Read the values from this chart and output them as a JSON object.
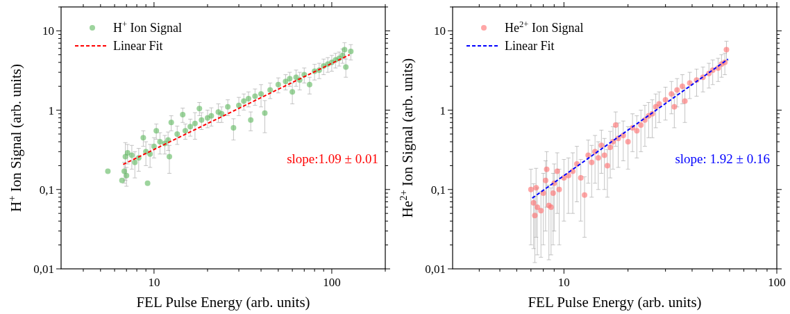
{
  "chart_data": [
    {
      "type": "scatter",
      "xlabel": "FEL Pulse Energy (arb. units)",
      "ylabel": "H$^{+}$ Ion Signal (arb. units)",
      "log": "xy",
      "legend": "top left",
      "xlim": [
        3,
        200
      ],
      "ylim": [
        0.01,
        20
      ],
      "xticks": [
        {
          "value": 4,
          "label": null
        },
        {
          "value": 5,
          "label": null
        },
        {
          "value": 6,
          "label": null
        },
        {
          "value": 7,
          "label": null
        },
        {
          "value": 8,
          "label": null
        },
        {
          "value": 9,
          "label": null
        },
        {
          "value": 10,
          "label": "10"
        },
        {
          "value": 20,
          "label": null
        },
        {
          "value": 30,
          "label": null
        },
        {
          "value": 40,
          "label": null
        },
        {
          "value": 50,
          "label": null
        },
        {
          "value": 60,
          "label": null
        },
        {
          "value": 70,
          "label": null
        },
        {
          "value": 80,
          "label": null
        },
        {
          "value": 90,
          "label": null
        },
        {
          "value": 100,
          "label": "100"
        },
        {
          "value": 200,
          "label": null
        }
      ],
      "yticks": [
        {
          "value": 0.01,
          "label": "0,01"
        },
        {
          "value": 0.02,
          "label": null
        },
        {
          "value": 0.03,
          "label": null
        },
        {
          "value": 0.04,
          "label": null
        },
        {
          "value": 0.05,
          "label": null
        },
        {
          "value": 0.06,
          "label": null
        },
        {
          "value": 0.07,
          "label": null
        },
        {
          "value": 0.08,
          "label": null
        },
        {
          "value": 0.09,
          "label": null
        },
        {
          "value": 0.1,
          "label": "0,1"
        },
        {
          "value": 0.2,
          "label": null
        },
        {
          "value": 0.3,
          "label": null
        },
        {
          "value": 0.4,
          "label": null
        },
        {
          "value": 0.5,
          "label": null
        },
        {
          "value": 0.6,
          "label": null
        },
        {
          "value": 0.7,
          "label": null
        },
        {
          "value": 0.8,
          "label": null
        },
        {
          "value": 0.9,
          "label": null
        },
        {
          "value": 1,
          "label": "1"
        },
        {
          "value": 2,
          "label": null
        },
        {
          "value": 3,
          "label": null
        },
        {
          "value": 4,
          "label": null
        },
        {
          "value": 5,
          "label": null
        },
        {
          "value": 6,
          "label": null
        },
        {
          "value": 7,
          "label": null
        },
        {
          "value": 8,
          "label": null
        },
        {
          "value": 9,
          "label": null
        },
        {
          "value": 10,
          "label": "10"
        },
        {
          "value": 20,
          "label": null
        }
      ],
      "annotations": [
        "slope:1.09 ± 0.01"
      ],
      "series": [
        {
          "name": "H$^{+}$ Ion Signal",
          "color": "#5cb85c",
          "marker": "circle",
          "x": [
            5.5,
            6.6,
            6.8,
            7.0,
            6.9,
            7.1,
            7.5,
            7.8,
            8.2,
            8.7,
            9.2,
            9.0,
            9.5,
            10.0,
            10.3,
            10.8,
            11.5,
            12.0,
            12.5,
            12.2,
            13.5,
            14.5,
            15,
            16,
            17,
            18,
            18.5,
            20,
            21,
            23,
            24,
            26,
            28,
            30,
            32,
            34,
            35,
            37,
            40,
            42,
            45,
            50,
            55,
            58,
            60,
            63,
            66,
            70,
            75,
            80,
            85,
            90,
            95,
            100,
            105,
            110,
            115,
            118,
            120,
            128
          ],
          "values": [
            0.17,
            0.13,
            0.17,
            0.15,
            0.26,
            0.29,
            0.27,
            0.22,
            0.25,
            0.45,
            0.12,
            0.3,
            0.28,
            0.35,
            0.55,
            0.4,
            0.38,
            0.42,
            0.7,
            0.26,
            0.5,
            0.88,
            0.55,
            0.62,
            0.68,
            1.05,
            0.75,
            0.8,
            0.85,
            0.95,
            0.9,
            1.1,
            0.6,
            1.15,
            1.3,
            1.4,
            0.75,
            1.5,
            1.6,
            0.92,
            1.8,
            2.1,
            2.3,
            2.5,
            1.7,
            2.6,
            2.4,
            2.8,
            2.1,
            3.1,
            3.2,
            3.6,
            3.8,
            4.0,
            4.3,
            4.5,
            4.9,
            5.8,
            3.5,
            5.5
          ],
          "errors": [
            null,
            null,
            0.05,
            0.04,
            0.13,
            0.08,
            0.09,
            0.08,
            0.08,
            0.1,
            null,
            0.1,
            0.09,
            0.1,
            0.12,
            0.12,
            0.1,
            0.11,
            0.15,
            0.1,
            0.13,
            0.18,
            0.12,
            0.15,
            0.25,
            0.2,
            0.18,
            0.2,
            0.22,
            0.25,
            0.2,
            0.25,
            0.18,
            0.3,
            0.3,
            0.3,
            0.2,
            0.35,
            0.5,
            0.4,
            0.4,
            0.45,
            0.5,
            0.5,
            0.5,
            0.6,
            0.6,
            0.6,
            0.5,
            0.7,
            0.7,
            0.8,
            0.8,
            0.9,
            0.9,
            0.9,
            1.0,
            1.3,
            0.9,
            1.2
          ]
        },
        {
          "type": "line",
          "name": "Linear Fit",
          "color": "#ff0000",
          "line_style": "dashed",
          "x": [
            6.7,
            126
          ],
          "values": [
            0.207,
            5.0
          ]
        }
      ]
    },
    {
      "type": "scatter",
      "xlabel": "FEL Pulse Energy (arb. units)",
      "ylabel": "He$^{2+}$ Ion Signal (arb. units)",
      "log": "xy",
      "legend": "top left",
      "xlim": [
        3,
        100
      ],
      "ylim": [
        0.01,
        20
      ],
      "xticks": [
        {
          "value": 4,
          "label": null
        },
        {
          "value": 5,
          "label": null
        },
        {
          "value": 6,
          "label": null
        },
        {
          "value": 7,
          "label": null
        },
        {
          "value": 8,
          "label": null
        },
        {
          "value": 9,
          "label": null
        },
        {
          "value": 10,
          "label": "10"
        },
        {
          "value": 20,
          "label": null
        },
        {
          "value": 30,
          "label": null
        },
        {
          "value": 40,
          "label": null
        },
        {
          "value": 50,
          "label": null
        },
        {
          "value": 60,
          "label": null
        },
        {
          "value": 70,
          "label": null
        },
        {
          "value": 80,
          "label": null
        },
        {
          "value": 90,
          "label": null
        },
        {
          "value": 100,
          "label": "100"
        }
      ],
      "yticks": [
        {
          "value": 0.01,
          "label": "0,01"
        },
        {
          "value": 0.02,
          "label": null
        },
        {
          "value": 0.03,
          "label": null
        },
        {
          "value": 0.04,
          "label": null
        },
        {
          "value": 0.05,
          "label": null
        },
        {
          "value": 0.06,
          "label": null
        },
        {
          "value": 0.07,
          "label": null
        },
        {
          "value": 0.08,
          "label": null
        },
        {
          "value": 0.09,
          "label": null
        },
        {
          "value": 0.1,
          "label": "0,1"
        },
        {
          "value": 0.2,
          "label": null
        },
        {
          "value": 0.3,
          "label": null
        },
        {
          "value": 0.4,
          "label": null
        },
        {
          "value": 0.5,
          "label": null
        },
        {
          "value": 0.6,
          "label": null
        },
        {
          "value": 0.7,
          "label": null
        },
        {
          "value": 0.8,
          "label": null
        },
        {
          "value": 0.9,
          "label": null
        },
        {
          "value": 1,
          "label": "1"
        },
        {
          "value": 2,
          "label": null
        },
        {
          "value": 3,
          "label": null
        },
        {
          "value": 4,
          "label": null
        },
        {
          "value": 5,
          "label": null
        },
        {
          "value": 6,
          "label": null
        },
        {
          "value": 7,
          "label": null
        },
        {
          "value": 8,
          "label": null
        },
        {
          "value": 9,
          "label": null
        },
        {
          "value": 10,
          "label": "10"
        },
        {
          "value": 20,
          "label": null
        }
      ],
      "annotations": [
        "slope: 1.92 ± 0.16"
      ],
      "series": [
        {
          "name": "He$^{2+}$ Ion Signal",
          "color": "#ff6b6b",
          "marker": "circle",
          "x": [
            7.0,
            7.2,
            7.3,
            7.5,
            7.4,
            7.8,
            8.0,
            8.2,
            8.3,
            8.5,
            8.7,
            8.9,
            9.0,
            9.3,
            9.5,
            10,
            10.5,
            11,
            11.5,
            12,
            12.5,
            13,
            13.5,
            14,
            14.5,
            15,
            15.5,
            16,
            16.5,
            17,
            17.5,
            18,
            19,
            20,
            21,
            22,
            23,
            24,
            25,
            26,
            27,
            28,
            30,
            32,
            33,
            34,
            36,
            37,
            39,
            42,
            45,
            48,
            50,
            53,
            55,
            57,
            58
          ],
          "values": [
            0.1,
            0.068,
            0.047,
            0.06,
            0.105,
            0.054,
            0.09,
            0.13,
            0.18,
            0.063,
            0.06,
            0.09,
            0.12,
            0.17,
            0.1,
            0.14,
            0.15,
            0.17,
            0.21,
            0.14,
            0.085,
            0.27,
            0.22,
            0.3,
            0.25,
            0.36,
            0.27,
            0.2,
            0.34,
            0.4,
            0.65,
            0.44,
            0.48,
            0.4,
            0.6,
            0.55,
            0.65,
            0.75,
            0.85,
            0.9,
            1.1,
            1.2,
            1.35,
            1.6,
            1.1,
            1.8,
            2.0,
            1.3,
            2.2,
            2.4,
            2.6,
            2.9,
            3.2,
            3.4,
            3.8,
            4.0,
            5.8
          ],
          "errors": [
            0.08,
            0.05,
            0.035,
            0.045,
            0.08,
            0.04,
            0.07,
            0.1,
            0.12,
            0.05,
            0.045,
            0.07,
            0.09,
            0.12,
            0.08,
            0.1,
            0.1,
            0.12,
            0.14,
            0.1,
            0.06,
            0.15,
            0.14,
            0.18,
            0.15,
            0.2,
            0.17,
            0.12,
            0.2,
            0.22,
            0.3,
            0.25,
            0.25,
            0.22,
            0.3,
            0.3,
            0.35,
            0.4,
            0.4,
            0.45,
            0.5,
            0.5,
            0.6,
            0.7,
            0.5,
            0.7,
            0.8,
            0.6,
            0.8,
            0.9,
            0.9,
            1.0,
            1.1,
            1.1,
            1.2,
            1.2,
            1.6
          ]
        },
        {
          "type": "line",
          "name": "Linear Fit",
          "color": "#0000ff",
          "line_style": "dashed",
          "x": [
            7.1,
            59
          ],
          "values": [
            0.078,
            4.4
          ]
        }
      ]
    }
  ]
}
